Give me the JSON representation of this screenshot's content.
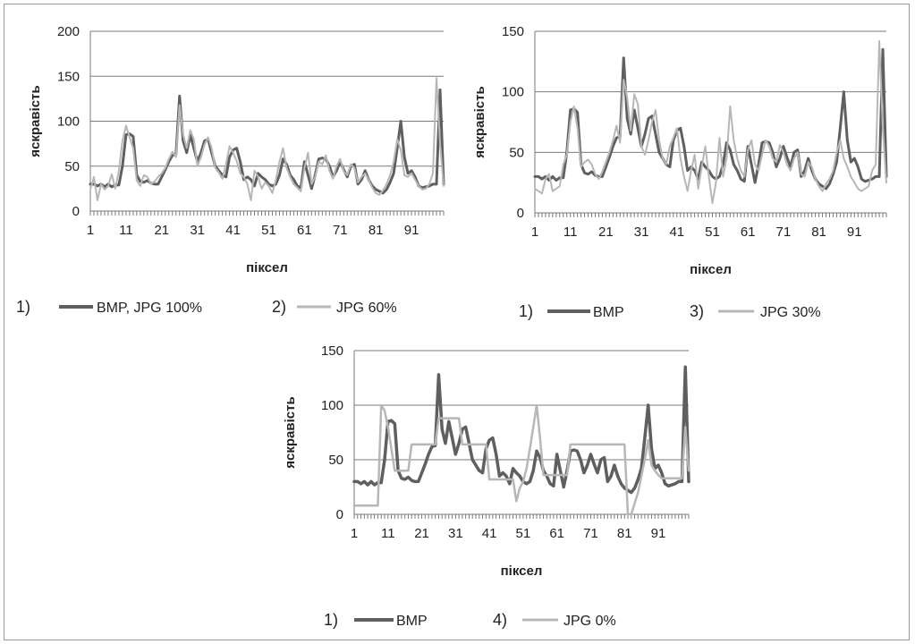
{
  "chart_data": [
    {
      "type": "line",
      "xlabel": "піксел",
      "ylabel": "яскравість",
      "ylim": [
        0,
        200
      ],
      "yticks": [
        "0",
        "50",
        "100",
        "150",
        "200"
      ],
      "xticks": [
        "1",
        "11",
        "21",
        "31",
        "41",
        "51",
        "61",
        "71",
        "81",
        "91"
      ],
      "grid": "horizontal",
      "legend_position": "bottom",
      "x": [
        1,
        2,
        3,
        4,
        5,
        6,
        7,
        8,
        9,
        10,
        11,
        12,
        13,
        14,
        15,
        16,
        17,
        18,
        19,
        20,
        21,
        22,
        23,
        24,
        25,
        26,
        27,
        28,
        29,
        30,
        31,
        32,
        33,
        34,
        35,
        36,
        37,
        38,
        39,
        40,
        41,
        42,
        43,
        44,
        45,
        46,
        47,
        48,
        49,
        50,
        51,
        52,
        53,
        54,
        55,
        56,
        57,
        58,
        59,
        60,
        61,
        62,
        63,
        64,
        65,
        66,
        67,
        68,
        69,
        70,
        71,
        72,
        73,
        74,
        75,
        76,
        77,
        78,
        79,
        80,
        81,
        82,
        83,
        84,
        85,
        86,
        87,
        88,
        89,
        90,
        91,
        92,
        93,
        94,
        95,
        96,
        97,
        98,
        99,
        100
      ],
      "series": [
        {
          "name": "BMP, JPG 100%",
          "legend_prefix": "1)",
          "color": "#5f5f5f",
          "width": 3,
          "values": [
            30,
            30,
            28,
            30,
            27,
            30,
            27,
            29,
            29,
            50,
            85,
            86,
            83,
            40,
            33,
            32,
            34,
            31,
            30,
            30,
            38,
            46,
            55,
            62,
            63,
            128,
            78,
            65,
            85,
            70,
            55,
            65,
            78,
            80,
            65,
            50,
            45,
            40,
            38,
            60,
            68,
            70,
            55,
            35,
            38,
            35,
            28,
            42,
            38,
            35,
            30,
            28,
            30,
            40,
            58,
            52,
            40,
            35,
            28,
            26,
            55,
            40,
            25,
            40,
            58,
            59,
            58,
            50,
            38,
            45,
            55,
            46,
            38,
            50,
            52,
            30,
            35,
            45,
            35,
            28,
            24,
            22,
            20,
            24,
            32,
            42,
            70,
            100,
            60,
            42,
            45,
            38,
            28,
            26,
            27,
            28,
            30,
            30,
            135,
            30
          ]
        },
        {
          "name": "JPG 60%",
          "legend_prefix": "2)",
          "color": "#b7b7b7",
          "width": 2,
          "values": [
            24,
            38,
            12,
            30,
            24,
            28,
            41,
            25,
            45,
            78,
            95,
            82,
            70,
            34,
            28,
            40,
            38,
            30,
            33,
            38,
            42,
            48,
            58,
            66,
            60,
            118,
            85,
            70,
            90,
            80,
            50,
            60,
            74,
            82,
            70,
            48,
            43,
            36,
            52,
            72,
            65,
            56,
            42,
            38,
            30,
            12,
            45,
            38,
            25,
            32,
            28,
            20,
            35,
            55,
            70,
            48,
            38,
            30,
            26,
            22,
            48,
            65,
            30,
            38,
            55,
            52,
            62,
            45,
            36,
            50,
            58,
            44,
            40,
            52,
            48,
            32,
            38,
            42,
            35,
            26,
            20,
            18,
            23,
            30,
            40,
            55,
            80,
            68,
            40,
            38,
            42,
            35,
            28,
            24,
            25,
            30,
            42,
            148,
            75,
            28
          ]
        }
      ]
    },
    {
      "type": "line",
      "xlabel": "піксел",
      "ylabel": "яскравість",
      "ylim": [
        0,
        150
      ],
      "yticks": [
        "0",
        "50",
        "100",
        "150"
      ],
      "xticks": [
        "1",
        "11",
        "21",
        "31",
        "41",
        "51",
        "61",
        "71",
        "81",
        "91"
      ],
      "grid": "horizontal",
      "legend_position": "bottom",
      "x": [
        1,
        2,
        3,
        4,
        5,
        6,
        7,
        8,
        9,
        10,
        11,
        12,
        13,
        14,
        15,
        16,
        17,
        18,
        19,
        20,
        21,
        22,
        23,
        24,
        25,
        26,
        27,
        28,
        29,
        30,
        31,
        32,
        33,
        34,
        35,
        36,
        37,
        38,
        39,
        40,
        41,
        42,
        43,
        44,
        45,
        46,
        47,
        48,
        49,
        50,
        51,
        52,
        53,
        54,
        55,
        56,
        57,
        58,
        59,
        60,
        61,
        62,
        63,
        64,
        65,
        66,
        67,
        68,
        69,
        70,
        71,
        72,
        73,
        74,
        75,
        76,
        77,
        78,
        79,
        80,
        81,
        82,
        83,
        84,
        85,
        86,
        87,
        88,
        89,
        90,
        91,
        92,
        93,
        94,
        95,
        96,
        97,
        98,
        99,
        100
      ],
      "series": [
        {
          "name": "BMP",
          "legend_prefix": "1)",
          "color": "#5f5f5f",
          "width": 3,
          "values": [
            30,
            30,
            28,
            30,
            27,
            30,
            27,
            29,
            29,
            50,
            85,
            86,
            83,
            40,
            33,
            32,
            34,
            31,
            30,
            30,
            38,
            46,
            55,
            62,
            63,
            128,
            78,
            65,
            85,
            70,
            55,
            65,
            78,
            80,
            65,
            50,
            45,
            40,
            38,
            60,
            68,
            70,
            55,
            35,
            38,
            35,
            28,
            42,
            38,
            35,
            30,
            28,
            30,
            40,
            58,
            52,
            40,
            35,
            28,
            26,
            55,
            40,
            25,
            40,
            58,
            59,
            58,
            50,
            38,
            45,
            55,
            46,
            38,
            50,
            52,
            30,
            35,
            45,
            35,
            28,
            24,
            22,
            20,
            24,
            32,
            42,
            70,
            100,
            60,
            42,
            45,
            38,
            28,
            26,
            27,
            28,
            30,
            30,
            135,
            30
          ]
        },
        {
          "name": "JPG 30%",
          "legend_prefix": "3)",
          "color": "#b7b7b7",
          "width": 2,
          "values": [
            20,
            18,
            16,
            28,
            32,
            18,
            20,
            22,
            40,
            48,
            75,
            88,
            70,
            38,
            42,
            44,
            40,
            32,
            28,
            34,
            42,
            50,
            60,
            72,
            58,
            110,
            95,
            68,
            98,
            90,
            55,
            48,
            60,
            75,
            85,
            60,
            45,
            40,
            55,
            62,
            70,
            45,
            30,
            18,
            35,
            48,
            20,
            38,
            55,
            30,
            8,
            25,
            62,
            30,
            45,
            88,
            60,
            45,
            35,
            30,
            52,
            60,
            40,
            35,
            48,
            60,
            55,
            45,
            42,
            56,
            50,
            40,
            35,
            45,
            50,
            32,
            30,
            42,
            38,
            28,
            22,
            18,
            24,
            28,
            35,
            50,
            60,
            45,
            38,
            30,
            25,
            20,
            18,
            20,
            22,
            35,
            40,
            142,
            70,
            25
          ]
        }
      ]
    },
    {
      "type": "line",
      "xlabel": "піксел",
      "ylabel": "яскравість",
      "ylim": [
        0,
        150
      ],
      "yticks": [
        "0",
        "50",
        "100",
        "150"
      ],
      "xticks": [
        "1",
        "11",
        "21",
        "31",
        "41",
        "51",
        "61",
        "71",
        "81",
        "91"
      ],
      "grid": "horizontal",
      "legend_position": "bottom",
      "x": [
        1,
        2,
        3,
        4,
        5,
        6,
        7,
        8,
        9,
        10,
        11,
        12,
        13,
        14,
        15,
        16,
        17,
        18,
        19,
        20,
        21,
        22,
        23,
        24,
        25,
        26,
        27,
        28,
        29,
        30,
        31,
        32,
        33,
        34,
        35,
        36,
        37,
        38,
        39,
        40,
        41,
        42,
        43,
        44,
        45,
        46,
        47,
        48,
        49,
        50,
        51,
        52,
        53,
        54,
        55,
        56,
        57,
        58,
        59,
        60,
        61,
        62,
        63,
        64,
        65,
        66,
        67,
        68,
        69,
        70,
        71,
        72,
        73,
        74,
        75,
        76,
        77,
        78,
        79,
        80,
        81,
        82,
        83,
        84,
        85,
        86,
        87,
        88,
        89,
        90,
        91,
        92,
        93,
        94,
        95,
        96,
        97,
        98,
        99,
        100
      ],
      "series": [
        {
          "name": "BMP",
          "legend_prefix": "1)",
          "color": "#5f5f5f",
          "width": 3.5,
          "values": [
            30,
            30,
            28,
            30,
            27,
            30,
            27,
            29,
            29,
            50,
            85,
            86,
            83,
            40,
            33,
            32,
            34,
            31,
            30,
            30,
            38,
            46,
            55,
            62,
            63,
            128,
            78,
            65,
            85,
            70,
            55,
            65,
            78,
            80,
            65,
            50,
            45,
            40,
            38,
            60,
            68,
            70,
            55,
            35,
            38,
            35,
            28,
            42,
            38,
            35,
            30,
            28,
            30,
            40,
            58,
            52,
            40,
            35,
            28,
            26,
            55,
            40,
            25,
            40,
            58,
            59,
            58,
            50,
            38,
            45,
            55,
            46,
            38,
            50,
            52,
            30,
            35,
            45,
            35,
            28,
            24,
            22,
            20,
            24,
            32,
            42,
            70,
            100,
            60,
            42,
            45,
            38,
            28,
            26,
            27,
            28,
            30,
            30,
            135,
            30
          ]
        },
        {
          "name": "JPG 0%",
          "legend_prefix": "4)",
          "color": "#b7b7b7",
          "width": 2.5,
          "values": [
            8,
            8,
            8,
            8,
            8,
            8,
            8,
            8,
            100,
            95,
            80,
            60,
            40,
            40,
            40,
            40,
            40,
            64,
            64,
            64,
            64,
            64,
            64,
            64,
            64,
            88,
            88,
            88,
            88,
            88,
            88,
            88,
            64,
            64,
            64,
            64,
            64,
            64,
            64,
            64,
            32,
            32,
            32,
            32,
            32,
            32,
            32,
            32,
            12,
            24,
            30,
            42,
            60,
            80,
            100,
            70,
            36,
            36,
            36,
            36,
            36,
            36,
            36,
            36,
            64,
            64,
            64,
            64,
            64,
            64,
            64,
            64,
            64,
            64,
            64,
            64,
            64,
            64,
            64,
            64,
            64,
            0,
            0,
            10,
            20,
            35,
            50,
            68,
            45,
            40,
            36,
            33,
            33,
            33,
            33,
            33,
            33,
            33,
            80,
            40
          ]
        }
      ]
    }
  ]
}
